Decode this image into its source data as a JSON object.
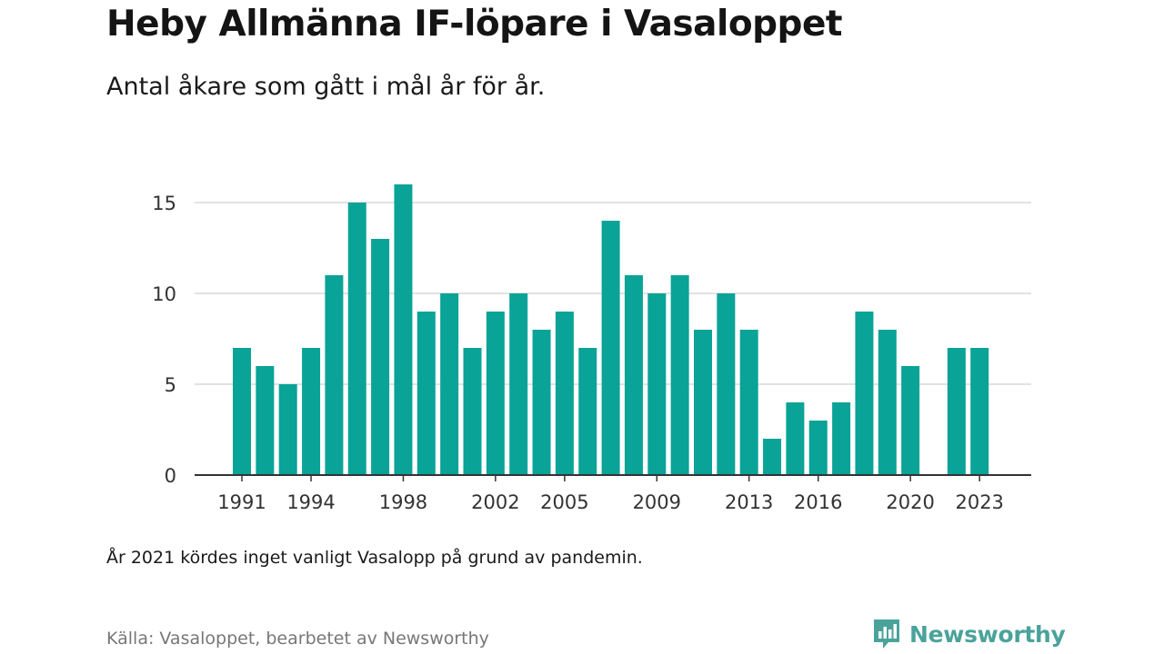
{
  "header": {
    "title": "Heby Allmänna IF-löpare i Vasaloppet",
    "subtitle": "Antal åkare som gått i mål år för år."
  },
  "footer": {
    "note": "År 2021 kördes inget vanligt Vasalopp på grund av pandemin.",
    "source": "Källa: Vasaloppet, bearbetet av Newsworthy",
    "brand": "Newsworthy",
    "brand_icon": "bar-chart-speech-bubble-icon"
  },
  "colors": {
    "bar": "#0aa397",
    "grid": "#d9d9d9",
    "axis": "#333333",
    "brand": "#4aa39b"
  },
  "chart_data": {
    "type": "bar",
    "x": [
      1991,
      1992,
      1993,
      1994,
      1995,
      1996,
      1997,
      1998,
      1999,
      2000,
      2001,
      2002,
      2003,
      2004,
      2005,
      2006,
      2007,
      2008,
      2009,
      2010,
      2011,
      2012,
      2013,
      2014,
      2015,
      2016,
      2017,
      2018,
      2019,
      2020,
      2021,
      2022,
      2023
    ],
    "values": [
      7,
      6,
      5,
      7,
      11,
      15,
      13,
      16,
      9,
      10,
      7,
      9,
      10,
      8,
      9,
      7,
      14,
      11,
      10,
      11,
      8,
      10,
      8,
      2,
      4,
      3,
      4,
      9,
      8,
      6,
      null,
      7,
      7
    ],
    "x_ticks": [
      1991,
      1994,
      1998,
      2002,
      2005,
      2009,
      2013,
      2016,
      2020,
      2023
    ],
    "y_ticks": [
      0,
      5,
      10,
      15
    ],
    "ylim": [
      0,
      16
    ],
    "xlabel": "",
    "ylabel": "",
    "grid": true
  }
}
